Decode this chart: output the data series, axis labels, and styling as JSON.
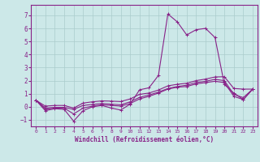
{
  "background_color": "#cce8e8",
  "grid_color": "#aacccc",
  "line_color": "#882288",
  "xlim": [
    -0.5,
    23.5
  ],
  "ylim": [
    -1.5,
    7.8
  ],
  "yticks": [
    -1,
    0,
    1,
    2,
    3,
    4,
    5,
    6,
    7
  ],
  "xticks": [
    0,
    1,
    2,
    3,
    4,
    5,
    6,
    7,
    8,
    9,
    10,
    11,
    12,
    13,
    14,
    15,
    16,
    17,
    18,
    19,
    20,
    21,
    22,
    23
  ],
  "xlabel": "Windchill (Refroidissement éolien,°C)",
  "curve1": [
    0.5,
    -0.3,
    -0.15,
    -0.2,
    -1.1,
    -0.3,
    0.0,
    0.1,
    -0.1,
    -0.25,
    0.2,
    1.3,
    1.45,
    2.4,
    7.1,
    6.5,
    5.5,
    5.9,
    6.0,
    5.3,
    1.7,
    1.05,
    0.55,
    1.35
  ],
  "curve2": [
    0.5,
    -0.2,
    -0.1,
    -0.1,
    -0.55,
    -0.1,
    0.05,
    0.15,
    0.1,
    0.05,
    0.25,
    0.6,
    0.8,
    1.05,
    1.35,
    1.5,
    1.55,
    1.75,
    1.85,
    1.95,
    1.85,
    0.8,
    0.55,
    1.35
  ],
  "curve3": [
    0.5,
    -0.1,
    -0.05,
    -0.05,
    -0.2,
    0.1,
    0.18,
    0.25,
    0.2,
    0.15,
    0.38,
    0.72,
    0.9,
    1.12,
    1.4,
    1.55,
    1.65,
    1.85,
    1.95,
    2.1,
    2.0,
    0.95,
    0.7,
    1.35
  ],
  "curve4": [
    0.5,
    0.05,
    0.1,
    0.1,
    -0.1,
    0.28,
    0.38,
    0.45,
    0.43,
    0.4,
    0.6,
    0.95,
    1.05,
    1.28,
    1.6,
    1.72,
    1.8,
    2.0,
    2.12,
    2.28,
    2.3,
    1.4,
    1.35,
    1.35
  ]
}
